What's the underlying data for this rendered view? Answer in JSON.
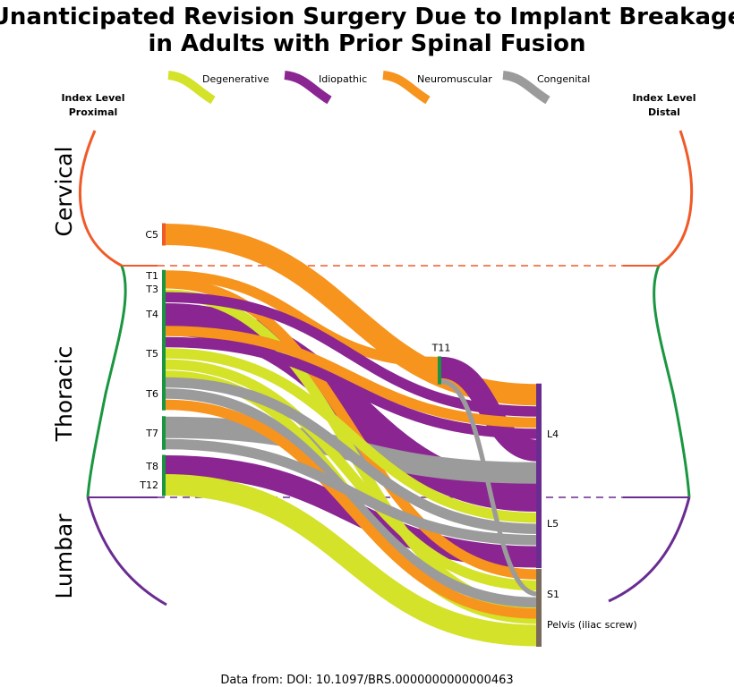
{
  "chart_data": {
    "type": "sankey",
    "title": [
      "Unanticipated Revision Surgery Due to Implant Breakage",
      "in Adults with Prior Spinal Fusion"
    ],
    "legend": [
      {
        "key": "degen",
        "label": "Degenerative",
        "color": "#d4e22a"
      },
      {
        "key": "idio",
        "label": "Idiopathic",
        "color": "#8b2592"
      },
      {
        "key": "neuro",
        "label": "Neuromuscular",
        "color": "#f7941d"
      },
      {
        "key": "cong",
        "label": "Congenital",
        "color": "#9b9b9b"
      }
    ],
    "left_axis_title": [
      "Index Level",
      "Proximal"
    ],
    "right_axis_title": [
      "Index Level",
      "Distal"
    ],
    "regions": [
      {
        "key": "cervical",
        "label": "Cervical",
        "color": "#f05a28"
      },
      {
        "key": "thoracic",
        "label": "Thoracic",
        "color": "#1a9641"
      },
      {
        "key": "lumbar",
        "label": "Lumbar",
        "color": "#6a2c91"
      }
    ],
    "proximal_levels": [
      {
        "key": "C5",
        "label": "C5",
        "region": "cervical"
      },
      {
        "key": "T1",
        "label": "T1",
        "region": "thoracic"
      },
      {
        "key": "T3",
        "label": "T3",
        "region": "thoracic"
      },
      {
        "key": "T4",
        "label": "T4",
        "region": "thoracic"
      },
      {
        "key": "T5",
        "label": "T5",
        "region": "thoracic"
      },
      {
        "key": "T6",
        "label": "T6",
        "region": "thoracic"
      },
      {
        "key": "T7",
        "label": "T7",
        "region": "thoracic"
      },
      {
        "key": "T8",
        "label": "T8",
        "region": "thoracic"
      },
      {
        "key": "T12",
        "label": "T12",
        "region": "thoracic"
      }
    ],
    "middle_levels": [
      {
        "key": "T11",
        "label": "T11",
        "region": "thoracic"
      }
    ],
    "distal_levels": [
      {
        "key": "L4",
        "label": "L4",
        "region": "lumbar"
      },
      {
        "key": "L5",
        "label": "L5",
        "region": "lumbar"
      },
      {
        "key": "S1",
        "label": "S1",
        "region": "sacral"
      },
      {
        "key": "Pelvis",
        "label": "Pelvis (iliac screw)",
        "region": "sacral"
      }
    ],
    "flows": [
      {
        "from": "C5",
        "to": "L4",
        "diagnosis": "neuro",
        "value": 2
      },
      {
        "from": "T1",
        "to": "T11",
        "diagnosis": "neuro",
        "value": 1
      },
      {
        "from": "T3",
        "to": "S1",
        "diagnosis": "neuro",
        "value": 1
      },
      {
        "from": "T3",
        "to": "Pelvis",
        "diagnosis": "degen",
        "value": 1
      },
      {
        "from": "T4",
        "to": "L4",
        "diagnosis": "idio",
        "value": 1
      },
      {
        "from": "T4",
        "to": "L5",
        "diagnosis": "idio",
        "value": 3
      },
      {
        "from": "T5",
        "to": "L4",
        "diagnosis": "neuro",
        "value": 1
      },
      {
        "from": "T5",
        "to": "L4",
        "diagnosis": "idio",
        "value": 1
      },
      {
        "from": "T5",
        "to": "L5",
        "diagnosis": "degen",
        "value": 1
      },
      {
        "from": "T5",
        "to": "S1",
        "diagnosis": "degen",
        "value": 1
      },
      {
        "from": "T5",
        "to": "Pelvis",
        "diagnosis": "degen",
        "value": 1
      },
      {
        "from": "T6",
        "to": "L5",
        "diagnosis": "cong",
        "value": 1
      },
      {
        "from": "T6",
        "to": "S1",
        "diagnosis": "cong",
        "value": 1
      },
      {
        "from": "T6",
        "to": "S1",
        "diagnosis": "neuro",
        "value": 1
      },
      {
        "from": "T7",
        "to": "L4",
        "diagnosis": "cong",
        "value": 2
      },
      {
        "from": "T7",
        "to": "L5",
        "diagnosis": "cong",
        "value": 1
      },
      {
        "from": "T8",
        "to": "L5",
        "diagnosis": "idio",
        "value": 2
      },
      {
        "from": "T11",
        "to": "L4",
        "diagnosis": "idio",
        "value": 2
      },
      {
        "from": "T11",
        "to": "S1",
        "diagnosis": "cong",
        "value": 0.5
      },
      {
        "from": "T12",
        "to": "Pelvis",
        "diagnosis": "degen",
        "value": 2
      }
    ],
    "source_note": "Data from: DOI: 10.1097/BRS.0000000000000463"
  }
}
